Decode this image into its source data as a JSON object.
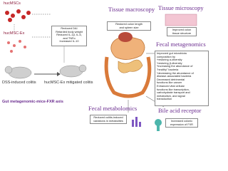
{
  "left": {
    "cells": "hucMSCs",
    "exosomes": "hucMSC-Ex",
    "effects": [
      "Reduced DAI",
      "Retarded body weight",
      "Reduced IL-1β, IL-6,",
      "and TNFα",
      "Increased IL-10"
    ],
    "dss": "DSS-induced colitis",
    "mitigated": "hucMSC-Ex mitigated colitis",
    "axis": "Gut metagenomic-mice-FXR axis"
  },
  "macroscopy": {
    "title": "Tissue macroscopy",
    "text": [
      "Restored colon length",
      "and spleen size"
    ]
  },
  "microscopy": {
    "title": "Tissue microscopy",
    "text": [
      "Improved colon",
      "tissue structure"
    ]
  },
  "metagenomics": {
    "title": "Fecal metagenomics",
    "text": [
      "Improved gut microbiota",
      "composition by",
      "*restoring α-diversity",
      "*restoring β-diversity",
      "*increasing the abundance of",
      "\"healthy\" bacteria",
      "*decreasing the abundance of",
      "disease-associated bacteria",
      "Decreased detrimental",
      "functions like cancer",
      "Enhanced vital cellular",
      "functions like transcription,",
      "carbohydrate transport and",
      "metabolism, and signal",
      "transduction"
    ]
  },
  "metabolomics": {
    "title": "Fecal metabolomics",
    "text": [
      "Reduced colitis-induced",
      "variations in metabolites"
    ]
  },
  "bile": {
    "title": "Bile acid receptor",
    "text": [
      "Increased colonic",
      "expression of FXR"
    ]
  }
}
